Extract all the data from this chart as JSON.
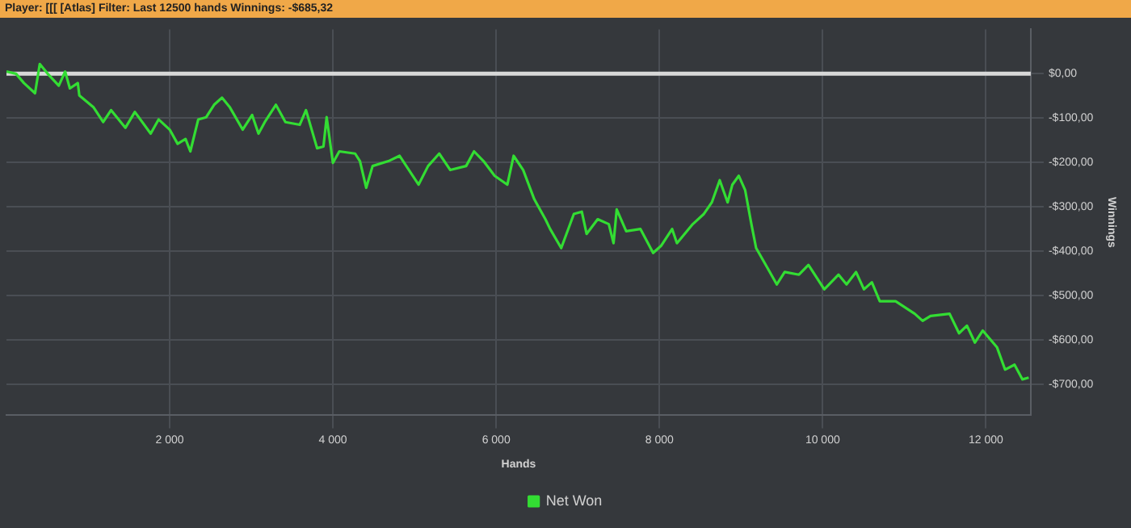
{
  "chart_data": {
    "type": "line",
    "title": "Player: [[[ [Atlas]  Filter: Last 12500 hands  Winnings: -$685,32",
    "xlabel": "Hands",
    "ylabel": "Winnings",
    "series": [
      {
        "name": "Net Won",
        "color": "#33dd33",
        "x": [
          0,
          117,
          214,
          350,
          408,
          505,
          641,
          719,
          777,
          874,
          893,
          1068,
          1185,
          1282,
          1457,
          1573,
          1767,
          1864,
          2000,
          2097,
          2194,
          2253,
          2350,
          2447,
          2544,
          2641,
          2738,
          2894,
          3010,
          3088,
          3165,
          3301,
          3418,
          3593,
          3670,
          3806,
          3884,
          3923,
          4000,
          4078,
          4272,
          4331,
          4408,
          4486,
          4680,
          4816,
          5049,
          5166,
          5302,
          5438,
          5632,
          5729,
          5845,
          5981,
          6137,
          6214,
          6331,
          6467,
          6603,
          6661,
          6797,
          6952,
          7049,
          7108,
          7244,
          7380,
          7438,
          7477,
          7593,
          7768,
          7923,
          8020,
          8156,
          8215,
          8409,
          8545,
          8642,
          8739,
          8836,
          8894,
          8972,
          9050,
          9127,
          9185,
          9322,
          9438,
          9535,
          9710,
          9826,
          10020,
          10195,
          10293,
          10409,
          10506,
          10603,
          10700,
          10894,
          11128,
          11225,
          11322,
          11555,
          11671,
          11768,
          11865,
          11962,
          12137,
          12235,
          12351,
          12448,
          12525
        ],
        "values": [
          5,
          0,
          -21,
          -44,
          22,
          0,
          -27,
          5,
          -33,
          -21,
          -49,
          -76,
          -109,
          -82,
          -122,
          -86,
          -135,
          -103,
          -126,
          -158,
          -147,
          -175,
          -103,
          -98,
          -70,
          -54,
          -76,
          -126,
          -93,
          -135,
          -109,
          -70,
          -109,
          -115,
          -82,
          -168,
          -164,
          -98,
          -201,
          -175,
          -180,
          -197,
          -257,
          -208,
          -197,
          -185,
          -250,
          -208,
          -180,
          -217,
          -208,
          -175,
          -197,
          -230,
          -250,
          -185,
          -217,
          -283,
          -328,
          -350,
          -393,
          -316,
          -311,
          -361,
          -328,
          -339,
          -382,
          -306,
          -355,
          -350,
          -404,
          -388,
          -350,
          -382,
          -339,
          -316,
          -290,
          -240,
          -290,
          -250,
          -230,
          -262,
          -339,
          -393,
          -437,
          -475,
          -447,
          -453,
          -431,
          -486,
          -453,
          -475,
          -447,
          -486,
          -470,
          -513,
          -513,
          -541,
          -557,
          -546,
          -541,
          -585,
          -568,
          -606,
          -579,
          -617,
          -667,
          -656,
          -689,
          -685
        ]
      }
    ],
    "xlim": [
      0,
      12550
    ],
    "ylim": [
      -770,
      100
    ],
    "xticks": [
      {
        "value": 2000,
        "label": "2 000"
      },
      {
        "value": 4000,
        "label": "4 000"
      },
      {
        "value": 6000,
        "label": "6 000"
      },
      {
        "value": 8000,
        "label": "8 000"
      },
      {
        "value": 10000,
        "label": "10 000"
      },
      {
        "value": 12000,
        "label": "12 000"
      }
    ],
    "yticks": [
      {
        "value": 0,
        "label": "$0,00"
      },
      {
        "value": -100,
        "label": "-$100,00"
      },
      {
        "value": -200,
        "label": "-$200,00"
      },
      {
        "value": -300,
        "label": "-$300,00"
      },
      {
        "value": -400,
        "label": "-$400,00"
      },
      {
        "value": -500,
        "label": "-$500,00"
      },
      {
        "value": -600,
        "label": "-$600,00"
      },
      {
        "value": -700,
        "label": "-$700,00"
      }
    ],
    "ref_lines": [
      {
        "axis": "y",
        "value": 0,
        "color": "#d8d8d8"
      }
    ],
    "grid": true,
    "legend": "bottom",
    "marker": "none",
    "line_style": "solid"
  }
}
